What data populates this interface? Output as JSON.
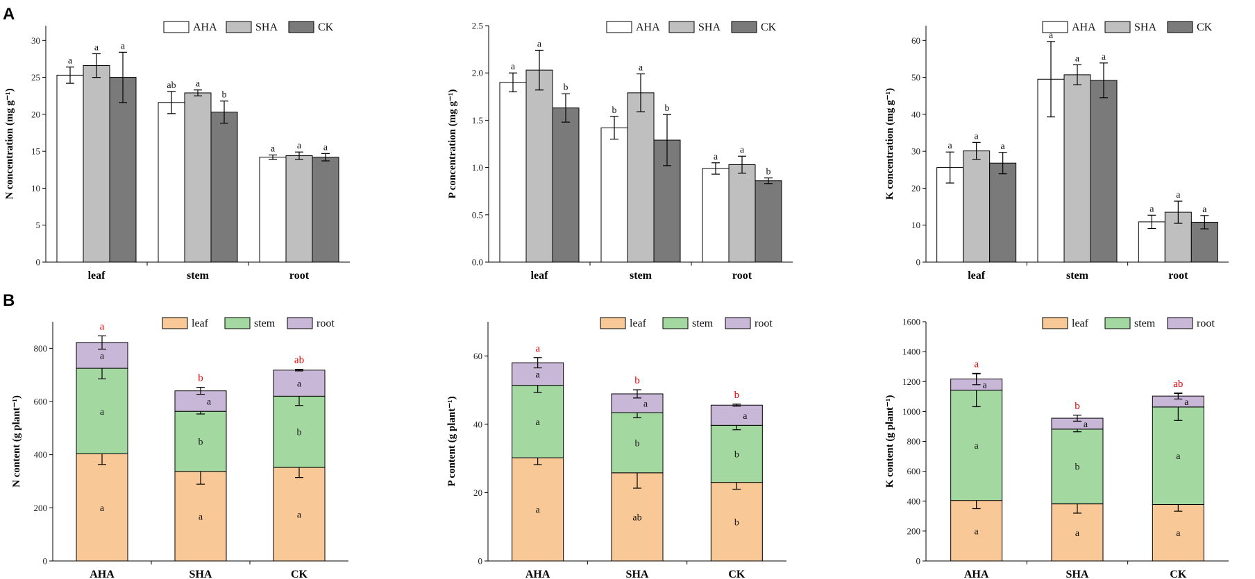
{
  "panel_labels": [
    "A",
    "B"
  ],
  "colors": {
    "AHA": "#ffffff",
    "SHA": "#bfbfbf",
    "CK": "#7a7a7a",
    "leaf": "#f9c897",
    "stem": "#a3d9a1",
    "root": "#c9b7d8",
    "total_sig": "#e00000"
  },
  "chart_data": [
    {
      "id": "N-concentration",
      "type": "bar",
      "row": "A",
      "title": "",
      "ylabel": "N concentration (mg g⁻¹)",
      "xlabel": "",
      "ylim": [
        0,
        32
      ],
      "yticks": [
        0,
        5,
        10,
        15,
        20,
        25,
        30
      ],
      "categories": [
        "leaf",
        "stem",
        "root"
      ],
      "legend": [
        "AHA",
        "SHA",
        "CK"
      ],
      "series": [
        {
          "name": "AHA",
          "values": [
            25.3,
            21.6,
            14.2
          ],
          "errors": [
            1.1,
            1.5,
            0.3
          ],
          "labels": [
            "a",
            "ab",
            "a"
          ]
        },
        {
          "name": "SHA",
          "values": [
            26.6,
            22.9,
            14.4
          ],
          "errors": [
            1.6,
            0.4,
            0.5
          ],
          "labels": [
            "a",
            "a",
            "a"
          ]
        },
        {
          "name": "CK",
          "values": [
            25.0,
            20.3,
            14.2
          ],
          "errors": [
            3.4,
            1.5,
            0.5
          ],
          "labels": [
            "a",
            "b",
            "a"
          ]
        }
      ]
    },
    {
      "id": "P-concentration",
      "type": "bar",
      "row": "A",
      "title": "",
      "ylabel": "P concentration (mg g⁻¹)",
      "xlabel": "",
      "ylim": [
        0,
        2.5
      ],
      "yticks": [
        0.0,
        0.5,
        1.0,
        1.5,
        2.0,
        2.5
      ],
      "categories": [
        "leaf",
        "stem",
        "root"
      ],
      "legend": [
        "AHA",
        "SHA",
        "CK"
      ],
      "series": [
        {
          "name": "AHA",
          "values": [
            1.9,
            1.42,
            0.99
          ],
          "errors": [
            0.1,
            0.12,
            0.06
          ],
          "labels": [
            "a",
            "b",
            "a"
          ]
        },
        {
          "name": "SHA",
          "values": [
            2.03,
            1.79,
            1.03
          ],
          "errors": [
            0.21,
            0.2,
            0.09
          ],
          "labels": [
            "a",
            "a",
            "a"
          ]
        },
        {
          "name": "CK",
          "values": [
            1.63,
            1.29,
            0.86
          ],
          "errors": [
            0.15,
            0.27,
            0.03
          ],
          "labels": [
            "b",
            "b",
            "b"
          ]
        }
      ]
    },
    {
      "id": "K-concentration",
      "type": "bar",
      "row": "A",
      "title": "",
      "ylabel": "K concentration (mg g⁻¹)",
      "xlabel": "",
      "ylim": [
        0,
        64
      ],
      "yticks": [
        0,
        10,
        20,
        30,
        40,
        50,
        60
      ],
      "categories": [
        "leaf",
        "stem",
        "root"
      ],
      "legend": [
        "AHA",
        "SHA",
        "CK"
      ],
      "series": [
        {
          "name": "AHA",
          "values": [
            25.6,
            49.5,
            10.9
          ],
          "errors": [
            4.2,
            10.2,
            1.8
          ],
          "labels": [
            "a",
            "a",
            "a"
          ]
        },
        {
          "name": "SHA",
          "values": [
            30.1,
            50.7,
            13.5
          ],
          "errors": [
            2.3,
            2.7,
            3.0
          ],
          "labels": [
            "a",
            "a",
            "a"
          ]
        },
        {
          "name": "CK",
          "values": [
            26.8,
            49.2,
            10.8
          ],
          "errors": [
            2.9,
            4.7,
            1.8
          ],
          "labels": [
            "a",
            "a",
            "a"
          ]
        }
      ]
    },
    {
      "id": "N-content",
      "type": "stacked-bar",
      "row": "B",
      "title": "",
      "ylabel": "N content (g plant⁻¹)",
      "xlabel": "",
      "ylim": [
        0,
        900
      ],
      "yticks": [
        0,
        200,
        400,
        600,
        800
      ],
      "categories": [
        "AHA",
        "SHA",
        "CK"
      ],
      "legend": [
        "leaf",
        "stem",
        "root"
      ],
      "series": [
        {
          "name": "leaf",
          "values": [
            403,
            337,
            352
          ],
          "errors": [
            40,
            48,
            38
          ],
          "labels": [
            "a",
            "a",
            "a"
          ]
        },
        {
          "name": "stem",
          "values": [
            322,
            226,
            268
          ],
          "errors": [
            40,
            10,
            35
          ],
          "labels": [
            "a",
            "b",
            "b"
          ]
        },
        {
          "name": "root",
          "values": [
            97,
            77,
            98
          ],
          "errors": [
            25,
            13,
            3
          ],
          "labels": [
            "a",
            "a",
            "a"
          ]
        }
      ],
      "total_labels": [
        "a",
        "b",
        "ab"
      ]
    },
    {
      "id": "P-content",
      "type": "stacked-bar",
      "row": "B",
      "title": "",
      "ylabel": "P content (g plant⁻¹)",
      "xlabel": "",
      "ylim": [
        0,
        70
      ],
      "yticks": [
        0,
        20,
        40,
        60
      ],
      "categories": [
        "AHA",
        "SHA",
        "CK"
      ],
      "legend": [
        "leaf",
        "stem",
        "root"
      ],
      "series": [
        {
          "name": "leaf",
          "values": [
            30.2,
            25.8,
            23.0
          ],
          "errors": [
            2.0,
            4.5,
            2.0
          ],
          "labels": [
            "a",
            "ab",
            "b"
          ]
        },
        {
          "name": "stem",
          "values": [
            21.2,
            17.6,
            16.7
          ],
          "errors": [
            2.1,
            1.5,
            1.3
          ],
          "labels": [
            "a",
            "b",
            "b"
          ]
        },
        {
          "name": "root",
          "values": [
            6.6,
            5.5,
            5.9
          ],
          "errors": [
            1.5,
            1.2,
            0.3
          ],
          "labels": [
            "a",
            "a",
            "a"
          ]
        }
      ],
      "total_labels": [
        "a",
        "b",
        "b"
      ]
    },
    {
      "id": "K-content",
      "type": "stacked-bar",
      "row": "B",
      "title": "",
      "ylabel": "K content (g plant⁻¹)",
      "xlabel": "",
      "ylim": [
        0,
        1600
      ],
      "yticks": [
        0,
        200,
        400,
        600,
        800,
        1000,
        1200,
        1400,
        1600
      ],
      "categories": [
        "AHA",
        "SHA",
        "CK"
      ],
      "legend": [
        "leaf",
        "stem",
        "root"
      ],
      "series": [
        {
          "name": "leaf",
          "values": [
            405,
            382,
            378
          ],
          "errors": [
            55,
            62,
            45
          ],
          "labels": [
            "a",
            "a",
            "a"
          ]
        },
        {
          "name": "stem",
          "values": [
            737,
            500,
            652
          ],
          "errors": [
            110,
            18,
            90
          ],
          "labels": [
            "a",
            "b",
            "a"
          ]
        },
        {
          "name": "root",
          "values": [
            75,
            73,
            73
          ],
          "errors": [
            38,
            20,
            20
          ],
          "labels": [
            "a",
            "a",
            "a"
          ]
        }
      ],
      "total_labels": [
        "a",
        "b",
        "ab"
      ]
    }
  ]
}
